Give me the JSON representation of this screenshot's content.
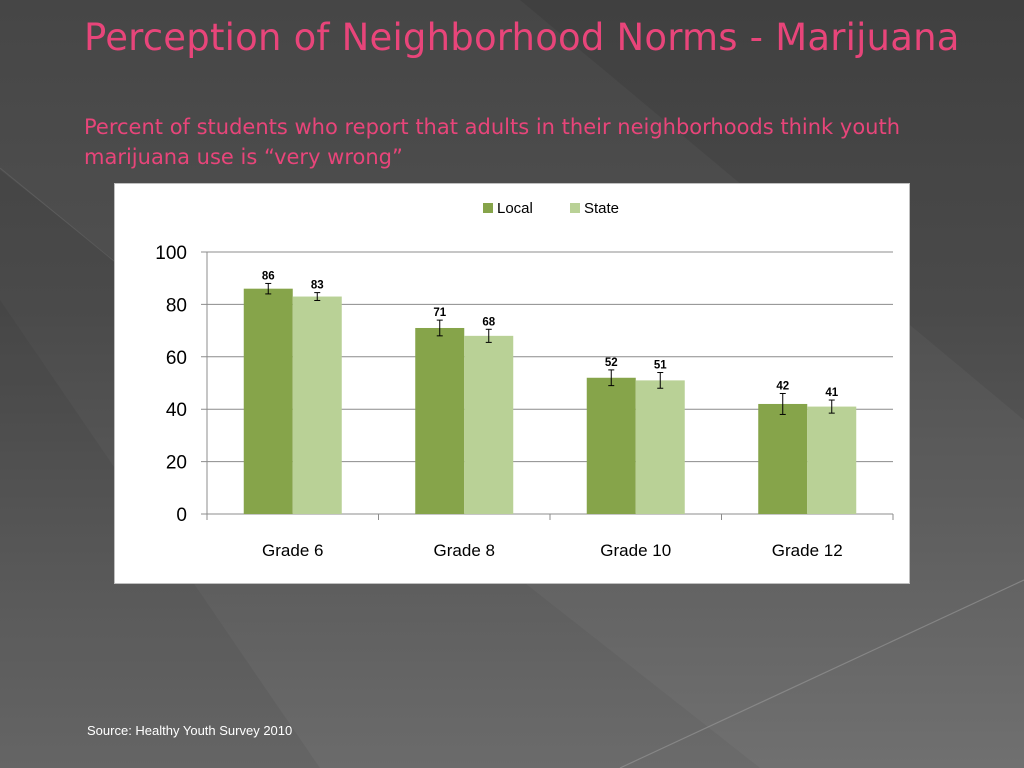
{
  "slide": {
    "title": "Perception of Neighborhood Norms - Marijuana",
    "subtitle": "Percent of students who report that adults in their neighborhoods think youth marijuana use is “very wrong”",
    "source": "Source: Healthy Youth Survey 2010"
  },
  "colors": {
    "title": "#e8457a",
    "local": "#86a44a",
    "state": "#b9d196",
    "background": "#4a4a4a"
  },
  "chart_data": {
    "type": "bar",
    "title": "",
    "xlabel": "",
    "ylabel": "",
    "categories": [
      "Grade 6",
      "Grade 8",
      "Grade 10",
      "Grade 12"
    ],
    "series": [
      {
        "name": "Local",
        "values": [
          86,
          71,
          52,
          42
        ],
        "error": [
          2,
          3,
          3,
          4
        ]
      },
      {
        "name": "State",
        "values": [
          83,
          68,
          51,
          41
        ],
        "error": [
          1.5,
          2.5,
          3,
          2.5
        ]
      }
    ],
    "ylim": [
      0,
      100
    ],
    "yticks": [
      0,
      20,
      40,
      60,
      80,
      100
    ],
    "grid": true,
    "legend": "top-center",
    "data_labels": true
  }
}
